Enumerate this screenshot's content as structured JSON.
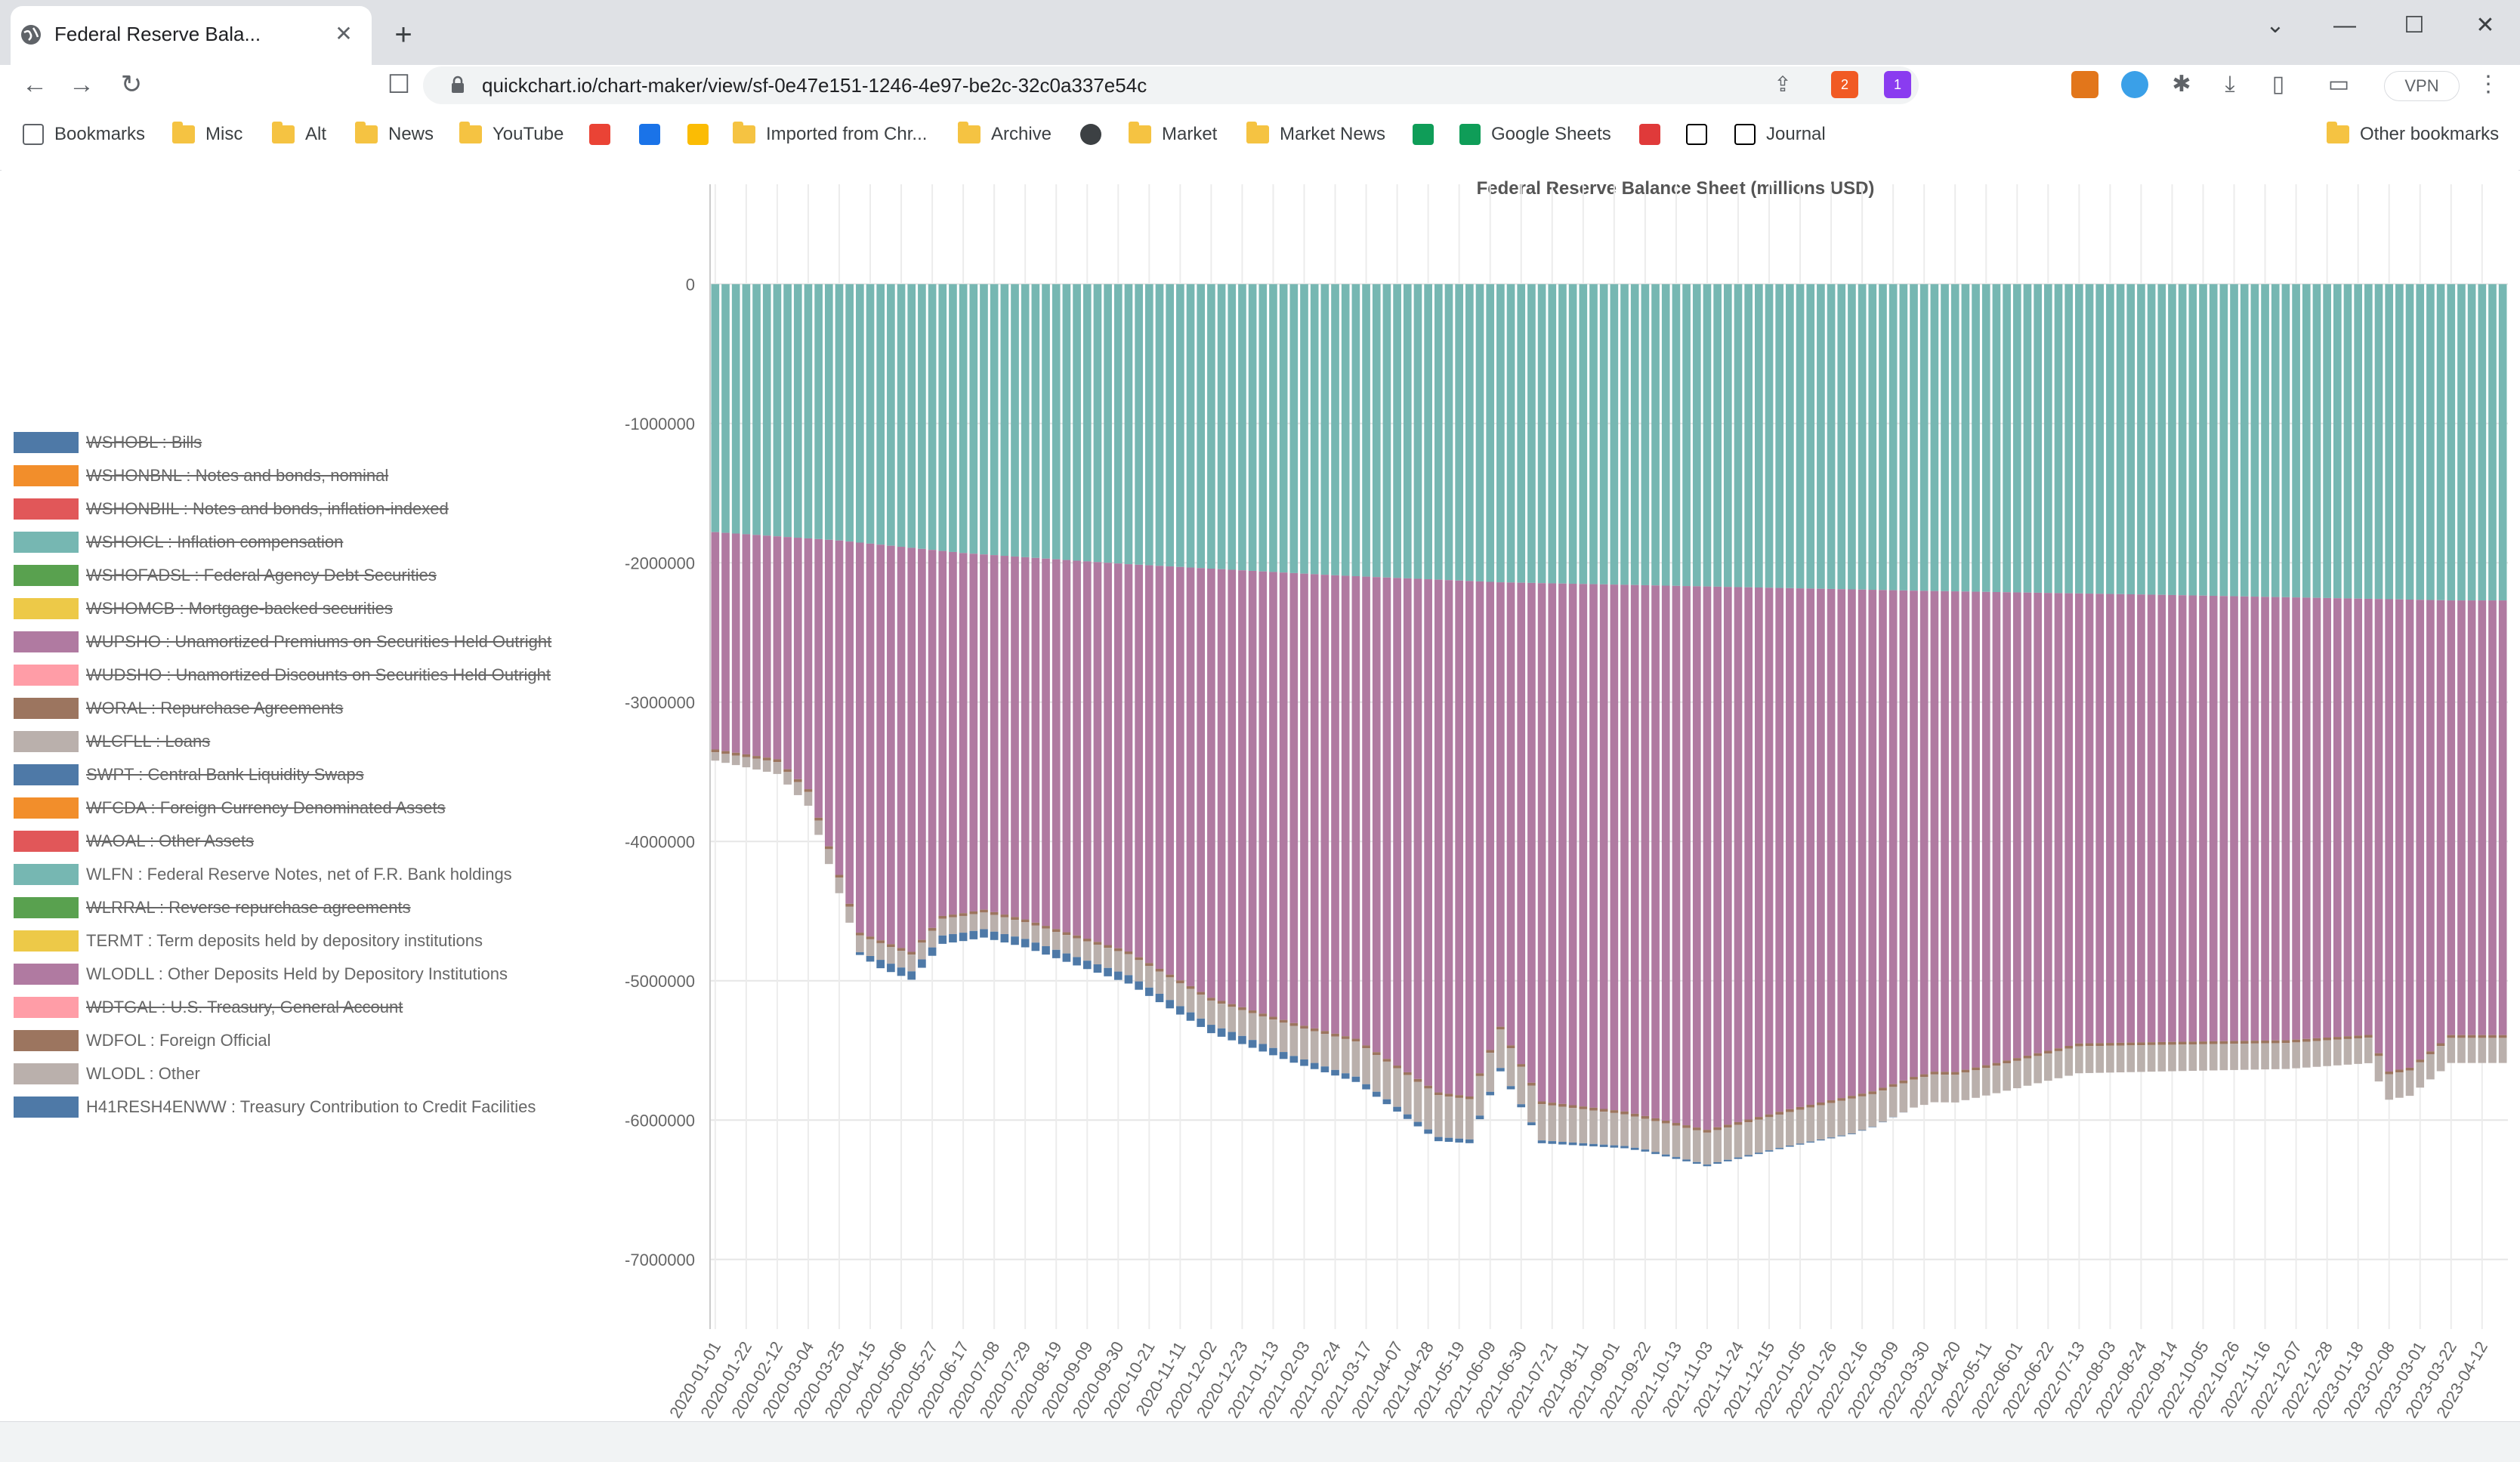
{
  "browser": {
    "tab_title": "Federal Reserve Bala...",
    "tab_close": "✕",
    "new_tab": "+",
    "url": "quickchart.io/chart-maker/view/sf-0e47e151-1246-4e97-be2c-32c0a337e54c",
    "vpn_label": "VPN",
    "ext_badge_brave": "2",
    "ext_badge_alert": "1",
    "window_controls": [
      "⌄",
      "—",
      "☐",
      "✕"
    ]
  },
  "bookmarks": [
    {
      "label": "Bookmarks",
      "icon": "bookmarks-icon"
    },
    {
      "label": "Misc",
      "icon": "folder-icon"
    },
    {
      "label": "Alt",
      "icon": "folder-icon"
    },
    {
      "label": "News",
      "icon": "folder-icon"
    },
    {
      "label": "YouTube",
      "icon": "folder-icon"
    },
    {
      "label": "",
      "icon": "gmail-icon"
    },
    {
      "label": "",
      "icon": "calendar-icon"
    },
    {
      "label": "",
      "icon": "keep-icon"
    },
    {
      "label": "Imported from Chr...",
      "icon": "folder-icon"
    },
    {
      "label": "Archive",
      "icon": "folder-icon"
    },
    {
      "label": "",
      "icon": "globe-icon"
    },
    {
      "label": "Market",
      "icon": "folder-icon"
    },
    {
      "label": "Market News",
      "icon": "folder-icon"
    },
    {
      "label": "",
      "icon": "sheets-icon"
    },
    {
      "label": "Google Sheets",
      "icon": "sheets-icon"
    },
    {
      "label": "",
      "icon": "red-square-icon"
    },
    {
      "label": "",
      "icon": "notion-icon"
    },
    {
      "label": "Journal",
      "icon": "notion-icon"
    },
    {
      "label": "Other bookmarks",
      "icon": "folder-icon"
    }
  ],
  "legend": [
    {
      "label": "WSHOBL : Bills",
      "color": "#4e79a7",
      "hidden": true
    },
    {
      "label": "WSHONBNL : Notes and bonds, nominal",
      "color": "#f28e2b",
      "hidden": true
    },
    {
      "label": "WSHONBIIL : Notes and bonds, inflation-indexed",
      "color": "#e15759",
      "hidden": true
    },
    {
      "label": "WSHOICL : Inflation compensation",
      "color": "#76b7b2",
      "hidden": true
    },
    {
      "label": "WSHOFADSL : Federal Agency Debt Securities",
      "color": "#59a14f",
      "hidden": true
    },
    {
      "label": "WSHOMCB : Mortgage-backed securities",
      "color": "#edc948",
      "hidden": true
    },
    {
      "label": "WUPSHO : Unamortized Premiums on Securities Held Outright",
      "color": "#b07aa1",
      "hidden": true
    },
    {
      "label": "WUDSHO : Unamortized Discounts on Securities Held Outright",
      "color": "#ff9da7",
      "hidden": true
    },
    {
      "label": "WORAL : Repurchase Agreements",
      "color": "#9c755f",
      "hidden": true
    },
    {
      "label": "WLCFLL : Loans",
      "color": "#bab0ac",
      "hidden": true
    },
    {
      "label": "SWPT : Central Bank Liquidity Swaps",
      "color": "#4e79a7",
      "hidden": true
    },
    {
      "label": "WFCDA : Foreign Currency Denominated Assets",
      "color": "#f28e2b",
      "hidden": true
    },
    {
      "label": "WAOAL : Other Assets",
      "color": "#e15759",
      "hidden": true
    },
    {
      "label": "WLFN : Federal Reserve Notes, net of F.R. Bank holdings",
      "color": "#76b7b2",
      "hidden": false
    },
    {
      "label": "WLRRAL : Reverse repurchase agreements",
      "color": "#59a14f",
      "hidden": true
    },
    {
      "label": "TERMT : Term deposits held by depository institutions",
      "color": "#edc948",
      "hidden": false
    },
    {
      "label": "WLODLL : Other Deposits Held by Depository Institutions",
      "color": "#b07aa1",
      "hidden": false
    },
    {
      "label": "WDTGAL : U.S. Treasury, General Account",
      "color": "#ff9da7",
      "hidden": true
    },
    {
      "label": "WDFOL : Foreign Official",
      "color": "#9c755f",
      "hidden": false
    },
    {
      "label": "WLODL : Other",
      "color": "#bab0ac",
      "hidden": false
    },
    {
      "label": "H41RESH4ENWW : Treasury Contribution to Credit Facilities",
      "color": "#4e79a7",
      "hidden": false
    }
  ],
  "chart_data": {
    "type": "bar",
    "stacked": true,
    "title": "Federal Reserve Balance Sheet (millions USD)",
    "xlabel": "",
    "ylabel": "",
    "ylim": [
      -7500000,
      500000
    ],
    "yticks": [
      0,
      -1000000,
      -2000000,
      -3000000,
      -4000000,
      -5000000,
      -6000000,
      -7000000
    ],
    "x_tick_labels": [
      "2020-01-01",
      "2020-01-22",
      "2020-02-12",
      "2020-03-04",
      "2020-03-25",
      "2020-04-15",
      "2020-05-06",
      "2020-05-27",
      "2020-06-17",
      "2020-07-08",
      "2020-07-29",
      "2020-08-19",
      "2020-09-09",
      "2020-09-30",
      "2020-10-21",
      "2020-11-11",
      "2020-12-02",
      "2020-12-23",
      "2021-01-13",
      "2021-02-03",
      "2021-02-24",
      "2021-03-17",
      "2021-04-07",
      "2021-04-28",
      "2021-05-19",
      "2021-06-09",
      "2021-06-30",
      "2021-07-21",
      "2021-08-11",
      "2021-09-01",
      "2021-09-22",
      "2021-10-13",
      "2021-11-03",
      "2021-11-24",
      "2021-12-15",
      "2022-01-05",
      "2022-01-26",
      "2022-02-16",
      "2022-03-09",
      "2022-03-30",
      "2022-04-20",
      "2022-05-11",
      "2022-06-01",
      "2022-06-22",
      "2022-07-13",
      "2022-08-03",
      "2022-08-24",
      "2022-09-14",
      "2022-10-05",
      "2022-10-26",
      "2022-11-16",
      "2022-12-07",
      "2022-12-28",
      "2023-01-18",
      "2023-02-08",
      "2023-03-01",
      "2023-03-22",
      "2023-04-12"
    ],
    "weekly_bars_per_label": 3,
    "series": [
      {
        "name": "WLFN : Federal Reserve Notes, net of F.R. Bank holdings",
        "color": "#76b7b2",
        "anchors": [
          [
            0,
            -1780000
          ],
          [
            12,
            -1840000
          ],
          [
            24,
            -1930000
          ],
          [
            40,
            -2010000
          ],
          [
            60,
            -2090000
          ],
          [
            76,
            -2140000
          ],
          [
            96,
            -2170000
          ],
          [
            116,
            -2200000
          ],
          [
            140,
            -2230000
          ],
          [
            168,
            -2270000
          ]
        ]
      },
      {
        "name": "WLODLL : Other Deposits Held by Depository Institutions",
        "color": "#b07aa1",
        "anchors": [
          [
            0,
            -1560000
          ],
          [
            6,
            -1600000
          ],
          [
            9,
            -1800000
          ],
          [
            14,
            -2800000
          ],
          [
            19,
            -2900000
          ],
          [
            22,
            -2620000
          ],
          [
            26,
            -2550000
          ],
          [
            30,
            -2600000
          ],
          [
            40,
            -2780000
          ],
          [
            48,
            -3080000
          ],
          [
            56,
            -3230000
          ],
          [
            62,
            -3320000
          ],
          [
            70,
            -3680000
          ],
          [
            73,
            -3700000
          ],
          [
            76,
            -3190000
          ],
          [
            80,
            -3720000
          ],
          [
            88,
            -3780000
          ],
          [
            96,
            -3900000
          ],
          [
            104,
            -3740000
          ],
          [
            112,
            -3600000
          ],
          [
            116,
            -3490000
          ],
          [
            118,
            -3450000
          ],
          [
            120,
            -3450000
          ],
          [
            124,
            -3380000
          ],
          [
            132,
            -3230000
          ],
          [
            144,
            -3200000
          ],
          [
            152,
            -3180000
          ],
          [
            160,
            -3130000
          ],
          [
            162,
            -3390000
          ],
          [
            164,
            -3360000
          ],
          [
            168,
            -3120000
          ]
        ]
      },
      {
        "name": "TERMT : Term deposits held by depository institutions",
        "color": "#edc948",
        "anchors": [
          [
            0,
            0
          ],
          [
            168,
            0
          ]
        ]
      },
      {
        "name": "WDFOL : Foreign Official",
        "color": "#9c755f",
        "anchors": [
          [
            0,
            -20000
          ],
          [
            168,
            -20000
          ]
        ]
      },
      {
        "name": "WLODL : Other",
        "color": "#bab0ac",
        "anchors": [
          [
            0,
            -60000
          ],
          [
            14,
            -120000
          ],
          [
            30,
            -120000
          ],
          [
            50,
            -180000
          ],
          [
            60,
            -240000
          ],
          [
            70,
            -300000
          ],
          [
            90,
            -220000
          ],
          [
            110,
            -250000
          ],
          [
            116,
            -200000
          ],
          [
            168,
            -180000
          ]
        ]
      },
      {
        "name": "H41RESH4ENWW : Treasury Contribution to Credit Facilities",
        "color": "#4e79a7",
        "anchors": [
          [
            0,
            0
          ],
          [
            13,
            0
          ],
          [
            16,
            -60000
          ],
          [
            40,
            -60000
          ],
          [
            50,
            -60000
          ],
          [
            60,
            -40000
          ],
          [
            70,
            -30000
          ],
          [
            80,
            -20000
          ],
          [
            90,
            -15000
          ],
          [
            110,
            -5000
          ],
          [
            116,
            0
          ],
          [
            168,
            0
          ]
        ]
      }
    ]
  }
}
